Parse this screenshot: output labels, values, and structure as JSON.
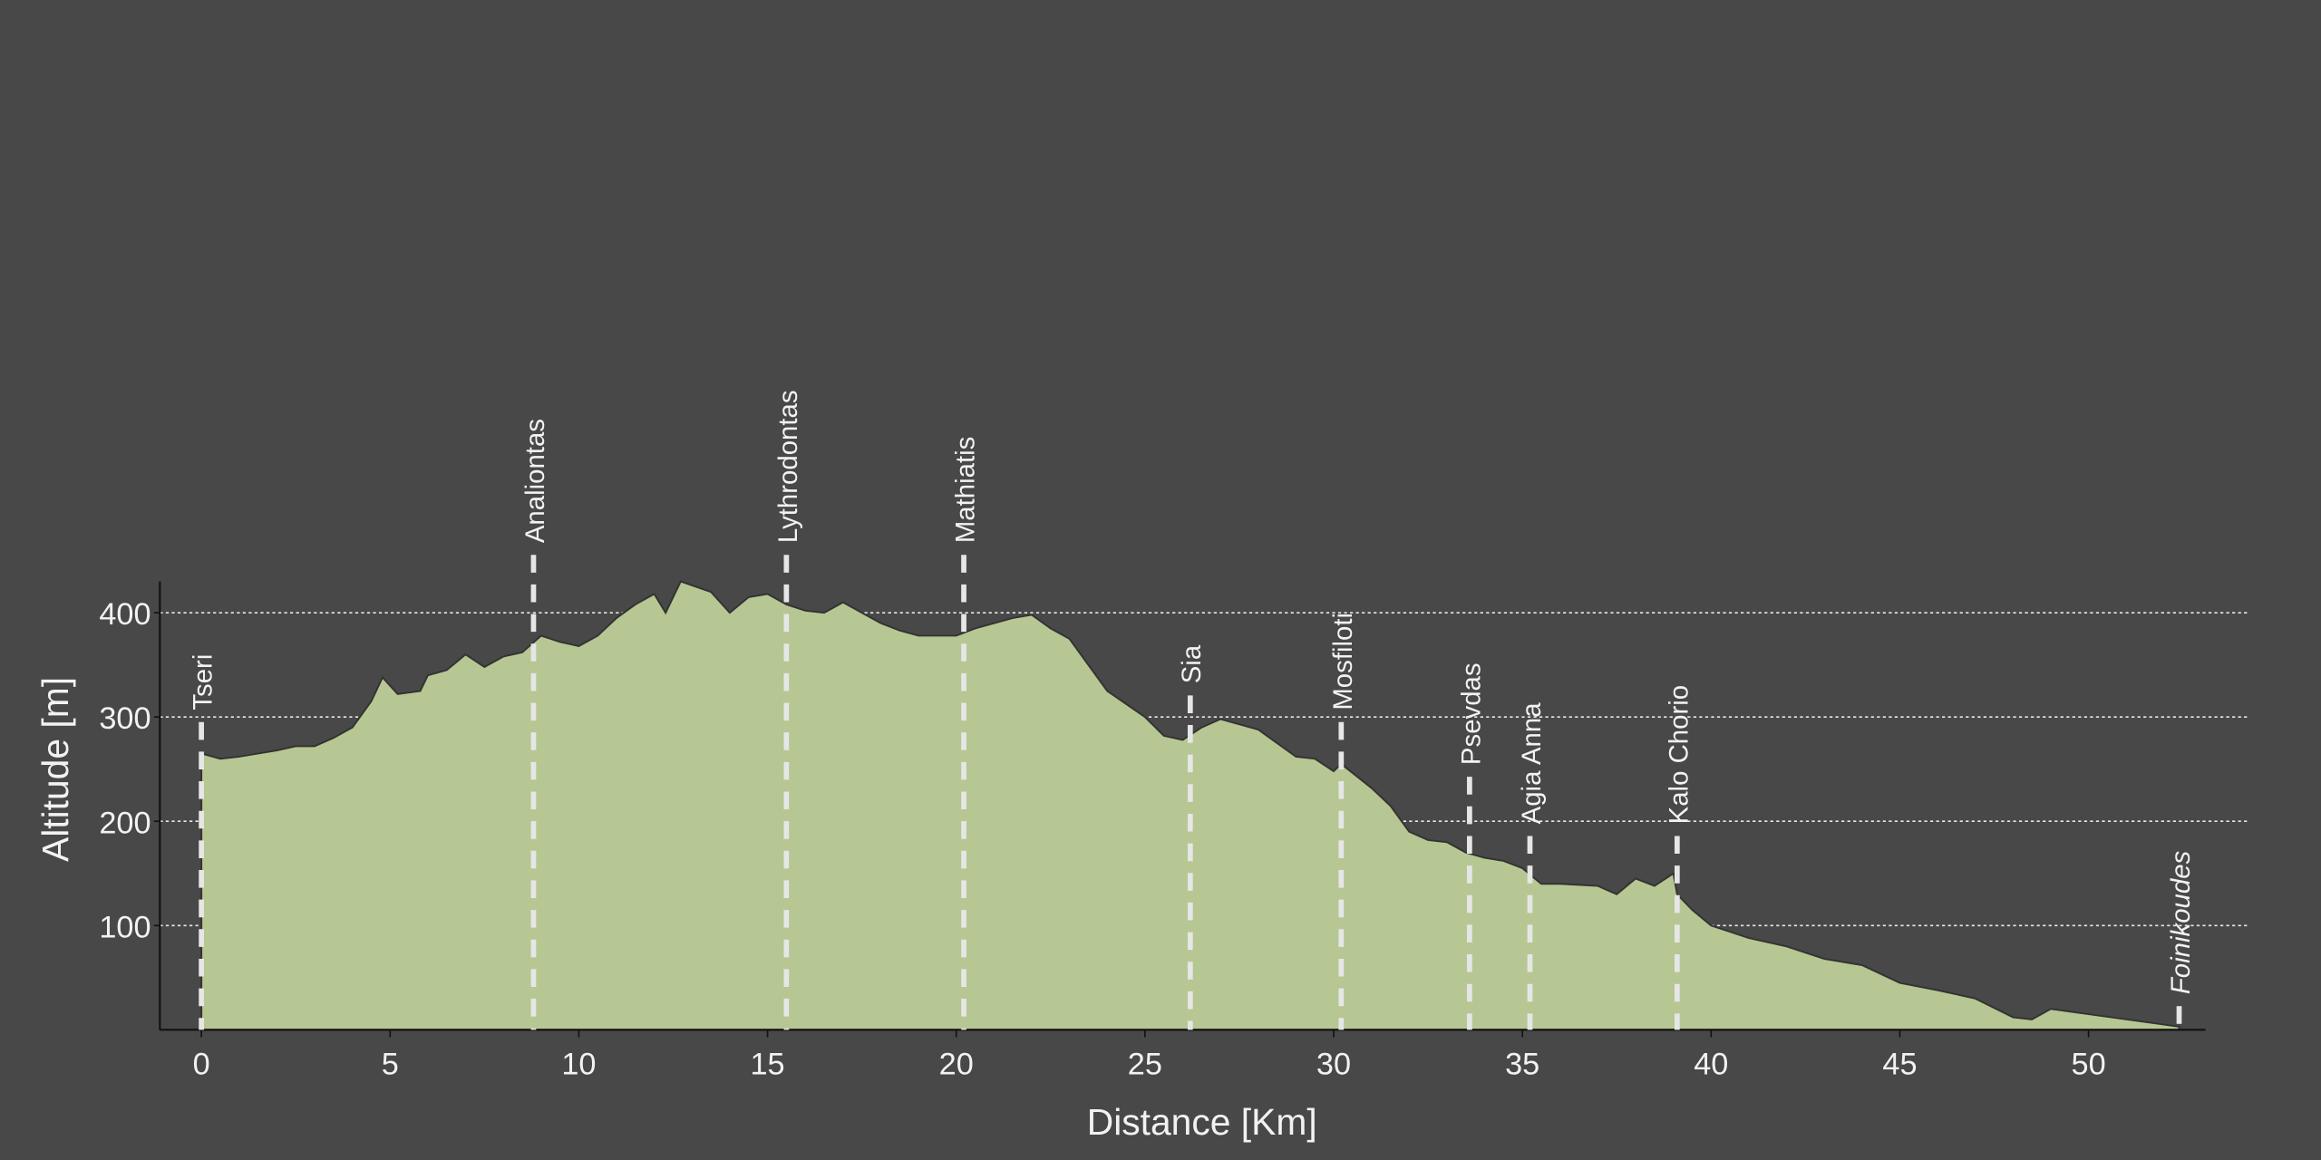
{
  "chart_data": {
    "type": "area",
    "xlabel": "Distance [Km]",
    "ylabel": "Altitude [m]",
    "color": "#b6c793",
    "background": "#484848",
    "grid": true,
    "xlim": [
      -1.1,
      53.1
    ],
    "ylim": [
      0,
      430
    ],
    "xticks": [
      0,
      5,
      10,
      15,
      20,
      25,
      30,
      35,
      40,
      45,
      50
    ],
    "yticks": [
      100,
      200,
      300,
      400
    ],
    "x": [
      0,
      0.5,
      1,
      2,
      2.5,
      3,
      3.5,
      4,
      4.5,
      4.8,
      5.2,
      5.8,
      6,
      6.5,
      7,
      7.5,
      8,
      8.5,
      9,
      9.5,
      10,
      10.5,
      11,
      11.5,
      12,
      12.3,
      12.7,
      13.5,
      14,
      14.5,
      15,
      15.5,
      16,
      16.5,
      17,
      17.5,
      18,
      18.5,
      19,
      20,
      20.5,
      21,
      21.5,
      22,
      22.5,
      23,
      23.5,
      24,
      25,
      25.5,
      26,
      26.5,
      27,
      28,
      28.5,
      29,
      29.5,
      30,
      30.2,
      31,
      31.5,
      32,
      32.5,
      33,
      33.5,
      34,
      34.5,
      35,
      35.5,
      36,
      37,
      37.5,
      38,
      38.5,
      39,
      39.1,
      39.5,
      40,
      41,
      42,
      43,
      44,
      45,
      46,
      47,
      48,
      48.5,
      49,
      50,
      51,
      52,
      52.4
    ],
    "values": [
      265,
      260,
      262,
      268,
      272,
      272,
      280,
      290,
      315,
      338,
      322,
      325,
      340,
      345,
      360,
      348,
      358,
      362,
      378,
      372,
      368,
      378,
      395,
      408,
      418,
      400,
      430,
      420,
      400,
      415,
      418,
      408,
      402,
      400,
      410,
      400,
      390,
      383,
      378,
      378,
      385,
      390,
      395,
      398,
      385,
      375,
      350,
      325,
      300,
      282,
      278,
      290,
      298,
      288,
      275,
      262,
      260,
      248,
      255,
      232,
      215,
      190,
      182,
      180,
      170,
      165,
      162,
      155,
      140,
      140,
      138,
      130,
      145,
      138,
      150,
      130,
      115,
      100,
      88,
      80,
      68,
      62,
      45,
      38,
      30,
      12,
      10,
      20,
      15,
      10,
      5,
      3
    ],
    "waypoints": [
      {
        "name": "Tseri",
        "x": 0
      },
      {
        "name": "Analiontas",
        "x": 8.8
      },
      {
        "name": "Lythrodontas",
        "x": 15.5
      },
      {
        "name": "Mathiatis",
        "x": 20.2
      },
      {
        "name": "Sia",
        "x": 26.2
      },
      {
        "name": "Mosfiloti",
        "x": 30.2
      },
      {
        "name": "Psevdas",
        "x": 33.6
      },
      {
        "name": "Agia Anna",
        "x": 35.2
      },
      {
        "name": "Kalo Chorio",
        "x": 39.1
      },
      {
        "name": "Foinikoudes",
        "x": 52.4
      }
    ]
  }
}
